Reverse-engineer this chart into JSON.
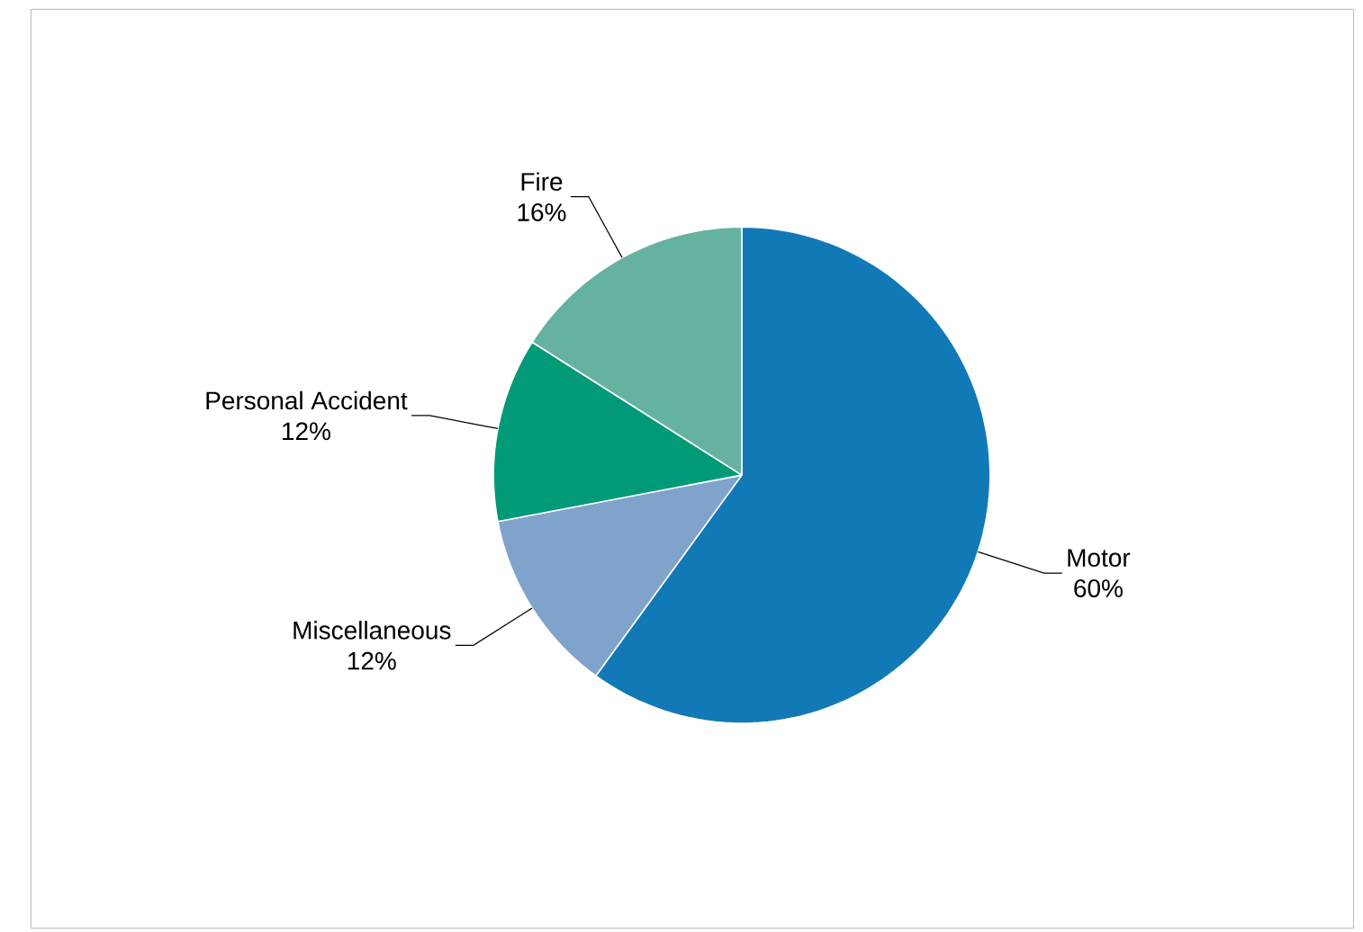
{
  "chart_data": {
    "type": "pie",
    "categories": [
      "Motor",
      "Miscellaneous",
      "Personal Accident",
      "Fire"
    ],
    "values": [
      60,
      12,
      12,
      16
    ],
    "value_labels": [
      "60%",
      "12%",
      "12%",
      "16%"
    ],
    "colors": [
      "#1279b7",
      "#7fa3ca",
      "#009a78",
      "#66b2a0"
    ]
  }
}
